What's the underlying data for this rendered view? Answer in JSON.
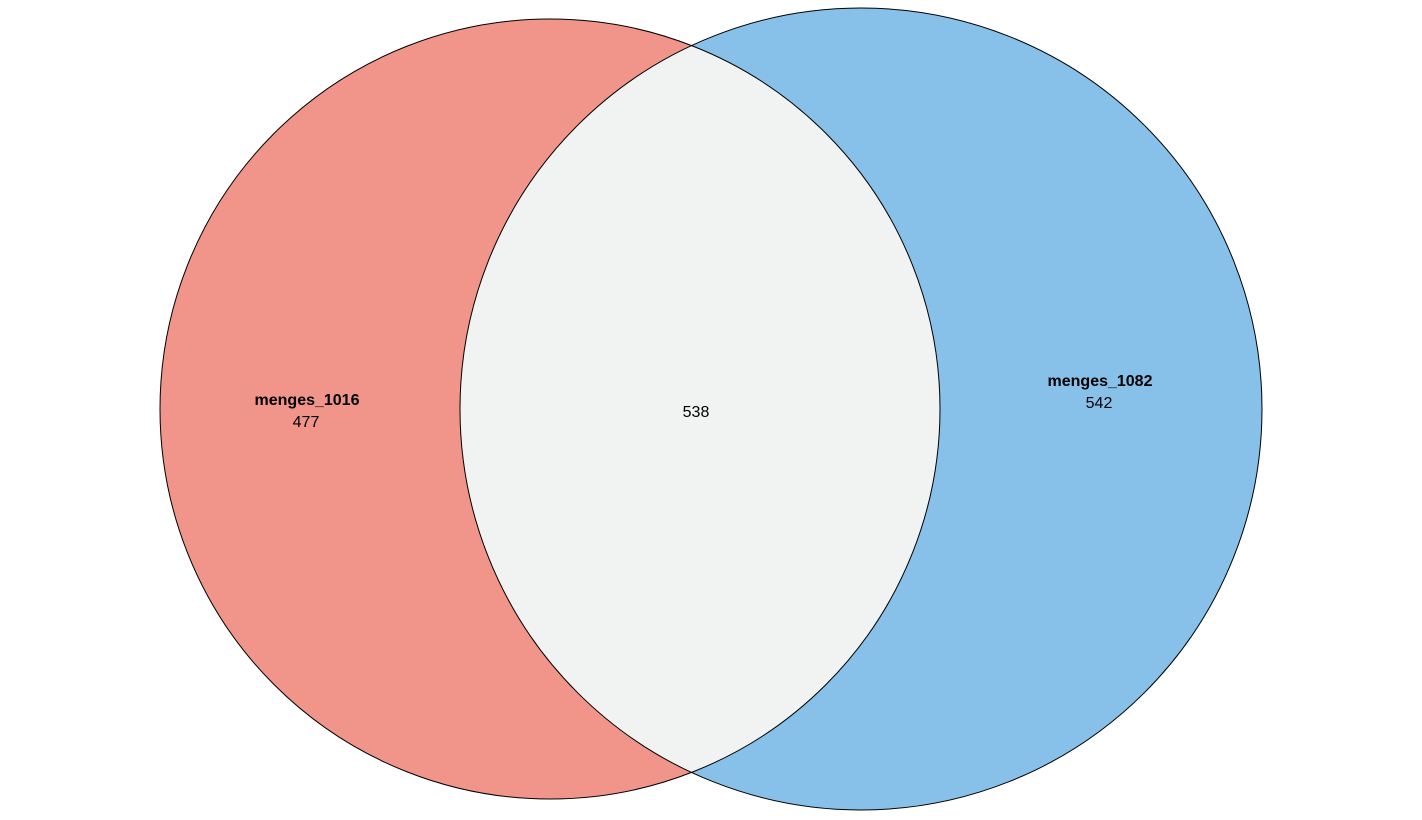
{
  "diagram": {
    "type": "venn",
    "sets": [
      {
        "id": "left",
        "name": "menges_1016",
        "unique_count": "477",
        "color": "#f1958a"
      },
      {
        "id": "right",
        "name": "menges_1082",
        "unique_count": "542",
        "color": "#87c1e9"
      }
    ],
    "intersection": {
      "count": "538",
      "color": "#f1f2f2"
    },
    "outline_color": "#000000",
    "background": "#ffffff"
  }
}
